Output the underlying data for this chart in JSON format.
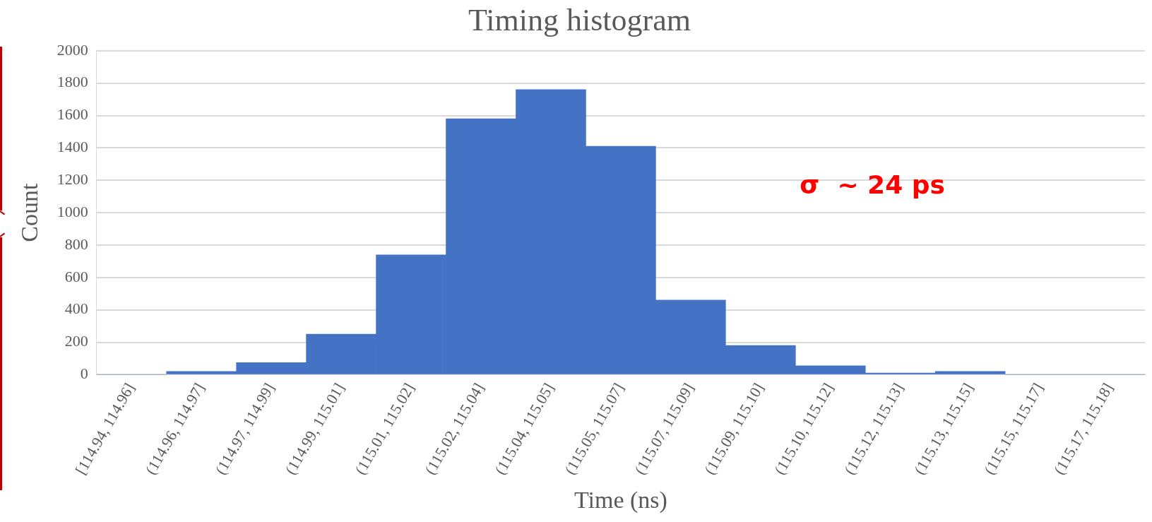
{
  "chart_data": {
    "type": "bar",
    "title": "Timing histogram",
    "xlabel": "Time (ns)",
    "ylabel": "Count",
    "categories": [
      "[114.94, 114.96]",
      "(114.96, 114.97]",
      "(114.97, 114.99]",
      "(114.99, 115.01]",
      "(115.01, 115.02]",
      "(115.02, 115.04]",
      "(115.04, 115.05]",
      "(115.05, 115.07]",
      "(115.07, 115.09]",
      "(115.09, 115.10]",
      "(115.10, 115.12]",
      "(115.12, 115.13]",
      "(115.13, 115.15]",
      "(115.15, 115.17]",
      "(115.17, 115.18]"
    ],
    "values": [
      0,
      20,
      75,
      250,
      740,
      1580,
      1760,
      1410,
      460,
      180,
      55,
      10,
      20,
      0,
      0
    ],
    "color": "#4472c4",
    "ylim": [
      0,
      2000
    ],
    "yticks": [
      0,
      200,
      400,
      600,
      800,
      1000,
      1200,
      1400,
      1600,
      1800,
      2000
    ],
    "grid": "y",
    "annotations": [
      "σ  ~ 24 ps"
    ]
  }
}
